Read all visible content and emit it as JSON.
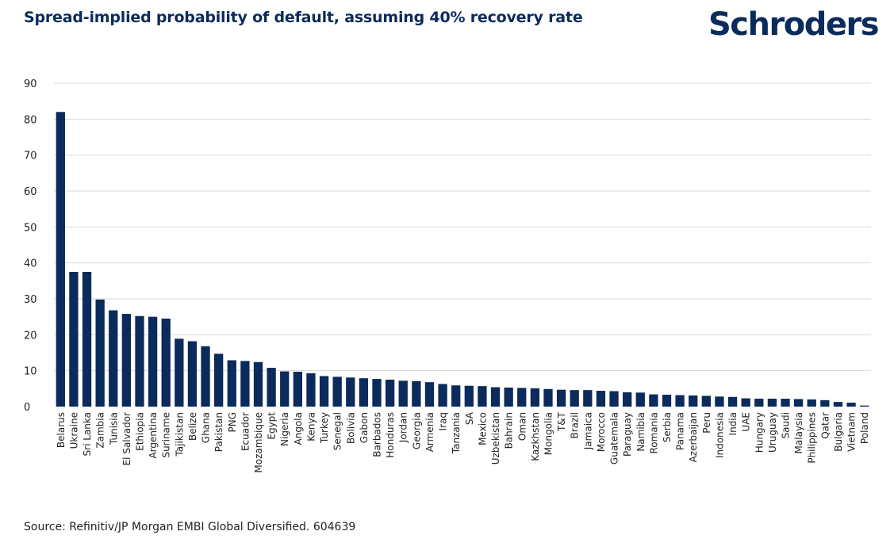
{
  "header": {
    "title": "Spread-implied probability of default, assuming 40% recovery rate",
    "logo": "Schroders"
  },
  "footer": {
    "source": "Source: Refinitiv/JP Morgan EMBI Global Diversified. 604639"
  },
  "colors": {
    "bar": "#0b2b5c",
    "grid": "#d9d9d9",
    "text": "#222222"
  },
  "chart_data": {
    "type": "bar",
    "title": "Spread-implied probability of default, assuming 40% recovery rate",
    "xlabel": "",
    "ylabel": "",
    "ylim": [
      0,
      90
    ],
    "yticks": [
      0,
      10,
      20,
      30,
      40,
      50,
      60,
      70,
      80,
      90
    ],
    "grid": true,
    "legend": "none",
    "categories": [
      "Belarus",
      "Ukraine",
      "Sri Lanka",
      "Zambia",
      "Tunisia",
      "El Salvador",
      "Ethiopia",
      "Argentina",
      "Suriname",
      "Tajikistan",
      "Belize",
      "Ghana",
      "Pakistan",
      "PNG",
      "Ecuador",
      "Mozambique",
      "Egypt",
      "Nigeria",
      "Angola",
      "Kenya",
      "Turkey",
      "Senegal",
      "Bolivia",
      "Gabon",
      "Barbados",
      "Honduras",
      "Jordan",
      "Georgia",
      "Armenia",
      "Iraq",
      "Tanzania",
      "SA",
      "Mexico",
      "Uzbekistan",
      "Bahrain",
      "Oman",
      "Kazkhstan",
      "Mongolia",
      "T&T",
      "Brazil",
      "Jamaica",
      "Morocco",
      "Guatemala",
      "Paraguay",
      "Namibia",
      "Romania",
      "Serbia",
      "Panama",
      "Azerbaijan",
      "Peru",
      "Indonesia",
      "India",
      "UAE",
      "Hungary",
      "Uruguay",
      "Saudi",
      "Malaysia",
      "Philippines",
      "Qatar",
      "Bulgaria",
      "Vietnam",
      "Poland"
    ],
    "values": [
      82,
      37.5,
      37.5,
      29.8,
      26.8,
      25.8,
      25.2,
      25,
      24.5,
      18.9,
      18.2,
      16.8,
      14.7,
      12.9,
      12.7,
      12.4,
      10.8,
      9.8,
      9.7,
      9.3,
      8.5,
      8.3,
      8.1,
      7.9,
      7.7,
      7.5,
      7.2,
      7.1,
      6.8,
      6.3,
      5.9,
      5.8,
      5.7,
      5.4,
      5.3,
      5.2,
      5.1,
      4.9,
      4.7,
      4.6,
      4.6,
      4.4,
      4.3,
      4,
      3.9,
      3.4,
      3.3,
      3.2,
      3.1,
      3,
      2.8,
      2.7,
      2.3,
      2.2,
      2.2,
      2.2,
      2.1,
      2,
      1.8,
      1.3,
      1.1,
      0.3
    ]
  }
}
